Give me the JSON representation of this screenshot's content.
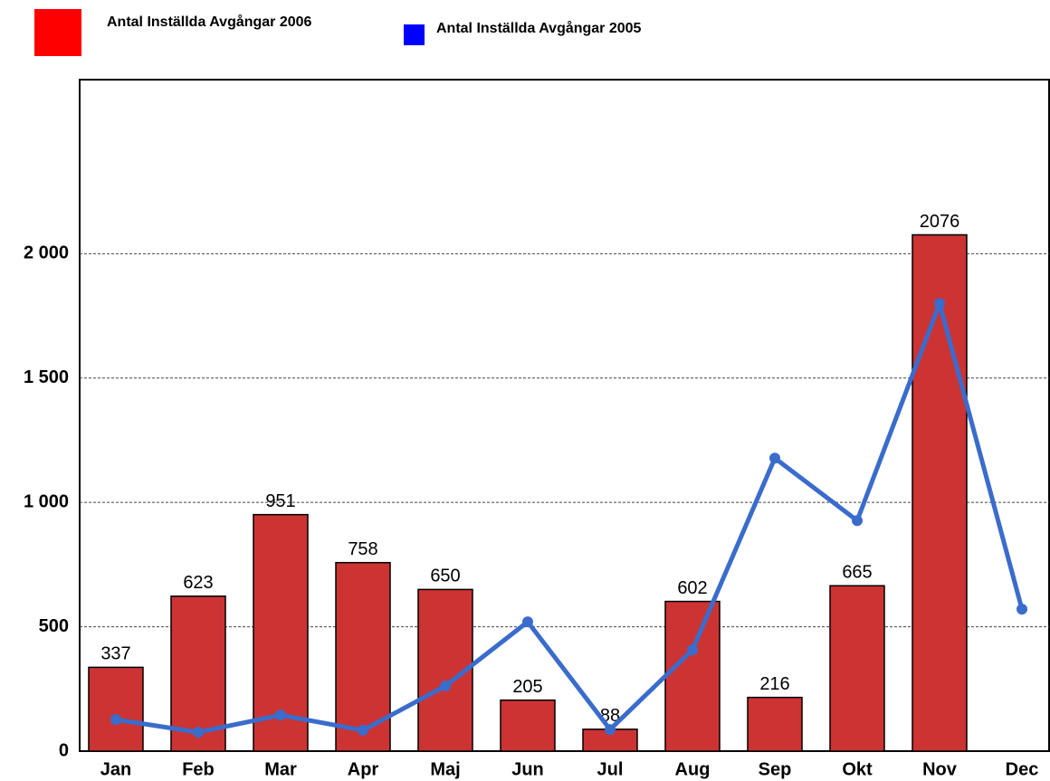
{
  "chart_data": {
    "type": "bar_line",
    "categories": [
      "Jan",
      "Feb",
      "Mar",
      "Apr",
      "Maj",
      "Jun",
      "Jul",
      "Aug",
      "Sep",
      "Okt",
      "Nov",
      "Dec"
    ],
    "series": [
      {
        "name": "Antal Inställda Avgångar 2006",
        "type": "bar",
        "color": "#cc3333",
        "legend_color": "#ff0000",
        "values": [
          337,
          623,
          951,
          758,
          650,
          205,
          88,
          602,
          216,
          665,
          2076,
          null
        ]
      },
      {
        "name": "Antal Inställda Avgångar 2005",
        "type": "line",
        "color": "#3a6ccc",
        "legend_color": "#0000ff",
        "values": [
          127,
          76,
          145,
          84,
          262,
          520,
          87,
          407,
          1178,
          927,
          1800,
          571
        ]
      }
    ],
    "ylim": [
      0,
      2700
    ],
    "yticks": [
      0,
      500,
      {
        "value": 1000,
        "label": "1 000"
      },
      {
        "value": 1500,
        "label": "1 500"
      },
      {
        "value": 2000,
        "label": "2 000"
      }
    ],
    "grid": true
  }
}
